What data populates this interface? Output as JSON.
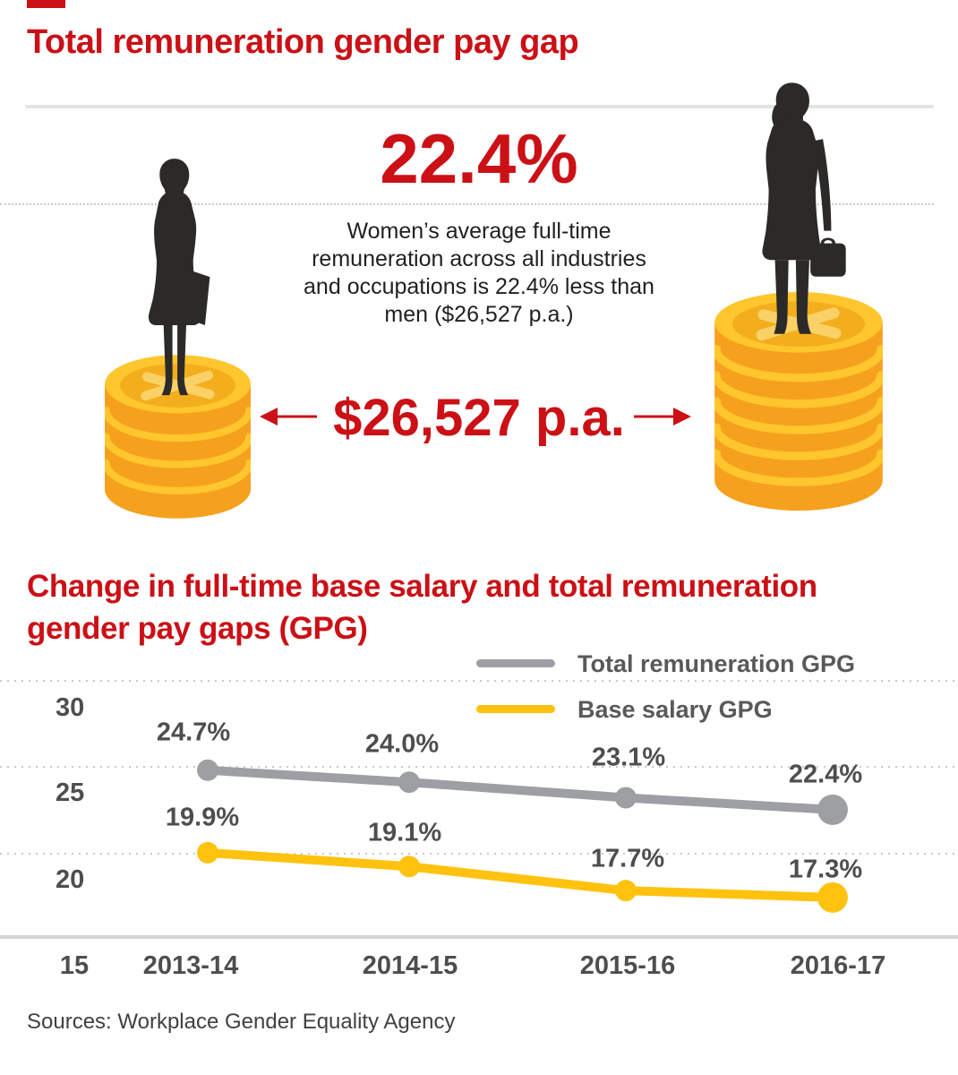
{
  "header": {
    "title": "Total remuneration gender pay gap"
  },
  "hero": {
    "stat": "22.4%",
    "description_lines": [
      "Women’s average full-time",
      "remuneration across all industries",
      "and occupations is 22.4% less than",
      "men ($26,527 p.a.)"
    ],
    "money": "$26,527 p.a."
  },
  "section2": {
    "title_lines": [
      "Change in full-time base salary and total remuneration",
      "gender pay gaps (GPG)"
    ]
  },
  "chart_data": {
    "type": "line",
    "title": "Change in full-time base salary and total remuneration gender pay gaps (GPG)",
    "categories": [
      "2013-14",
      "2014-15",
      "2015-16",
      "2016-17"
    ],
    "series": [
      {
        "name": "Total remuneration GPG",
        "color": "#9d9fa2",
        "values": [
          24.7,
          24.0,
          23.1,
          22.4
        ],
        "labels": [
          "24.7%",
          "24.0%",
          "23.1%",
          "22.4%"
        ]
      },
      {
        "name": "Base salary GPG",
        "color": "#ffc20e",
        "values": [
          19.9,
          19.1,
          17.7,
          17.3
        ],
        "labels": [
          "19.9%",
          "19.1%",
          "17.7%",
          "17.3%"
        ]
      }
    ],
    "yticks": [
      "30",
      "25",
      "20",
      "15"
    ],
    "ylim": [
      15,
      31
    ],
    "grid": "horizontal-dotted",
    "legend_position": "top-right"
  },
  "footer": {
    "sources": "Sources: Workplace Gender Equality Agency"
  },
  "colors": {
    "accent_red": "#cb1016",
    "series_gray": "#9d9fa2",
    "series_yellow": "#ffc20e",
    "coin_dark": "#f6a11d",
    "coin_light": "#ffc62e",
    "silhouette": "#2b2a29"
  }
}
